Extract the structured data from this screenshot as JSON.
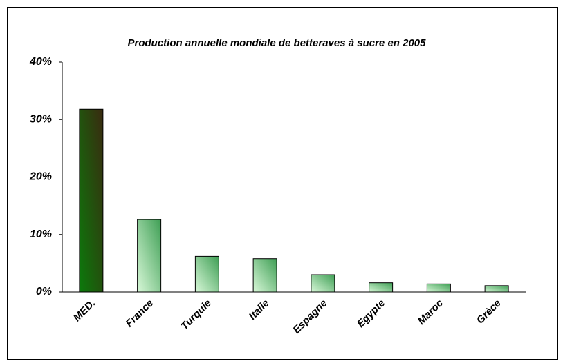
{
  "chart_data": {
    "type": "bar",
    "title": "Production annuelle mondiale de betteraves à sucre en 2005",
    "categories": [
      "MED.",
      "France",
      "Turquie",
      "Italie",
      "Espagne",
      "Egypte",
      "Maroc",
      "Grèce"
    ],
    "values": [
      31.8,
      12.6,
      6.2,
      5.8,
      3.0,
      1.6,
      1.4,
      1.1
    ],
    "colors": [
      "#0b7a0b",
      "#3f9f55",
      "#3f9f55",
      "#3f9f55",
      "#3f9f55",
      "#3f9f55",
      "#3f9f55",
      "#3f9f55"
    ],
    "ylim": [
      0,
      40
    ],
    "yticks": [
      {
        "value": 0,
        "label": "0%"
      },
      {
        "value": 10,
        "label": "10%"
      },
      {
        "value": 20,
        "label": "20%"
      },
      {
        "value": 30,
        "label": "30%"
      },
      {
        "value": 40,
        "label": "40%"
      }
    ],
    "grid": false
  }
}
